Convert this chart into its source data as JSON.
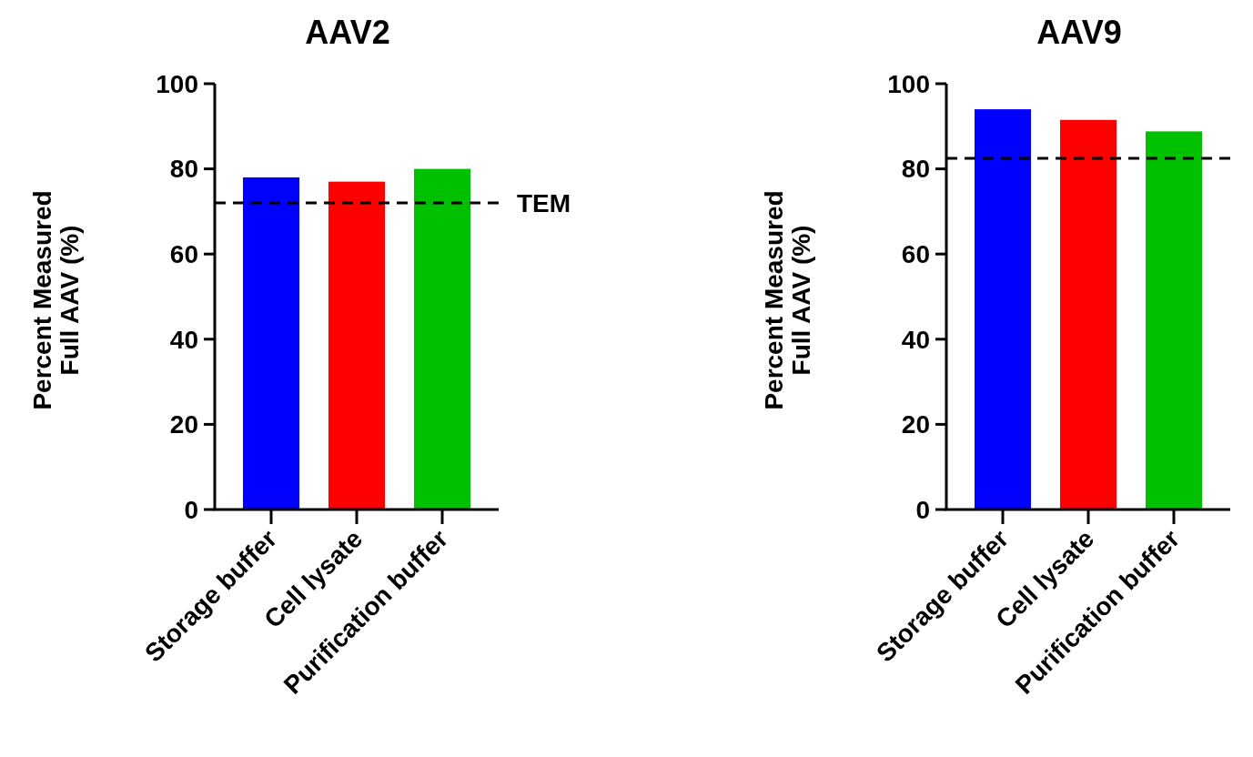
{
  "chart_data": [
    {
      "type": "bar",
      "title": "AAV2",
      "ylabel": "Percent Measured\nFull AAV (%)",
      "categories": [
        "Storage buffer",
        "Cell lysate",
        "Purification buffer"
      ],
      "values": [
        78,
        77,
        80
      ],
      "colors": [
        "#0000ff",
        "#ff0000",
        "#00c000"
      ],
      "ylim": [
        0,
        100
      ],
      "yticks": [
        0,
        20,
        40,
        60,
        80,
        100
      ],
      "ref_lines": [
        {
          "axis": "y",
          "value": 72,
          "label": "TEM",
          "color": "#000000",
          "line_style": "dashed"
        }
      ]
    },
    {
      "type": "bar",
      "title": "AAV9",
      "ylabel": "Percent Measured\nFull AAV (%)",
      "categories": [
        "Storage buffer",
        "Cell lysate",
        "Purification buffer"
      ],
      "values": [
        94,
        91.5,
        88.8
      ],
      "colors": [
        "#0000ff",
        "#ff0000",
        "#00c000"
      ],
      "ylim": [
        0,
        100
      ],
      "yticks": [
        0,
        20,
        40,
        60,
        80,
        100
      ],
      "ref_lines": [
        {
          "axis": "y",
          "value": 82.5,
          "color": "#000000",
          "line_style": "dashed"
        }
      ]
    }
  ]
}
